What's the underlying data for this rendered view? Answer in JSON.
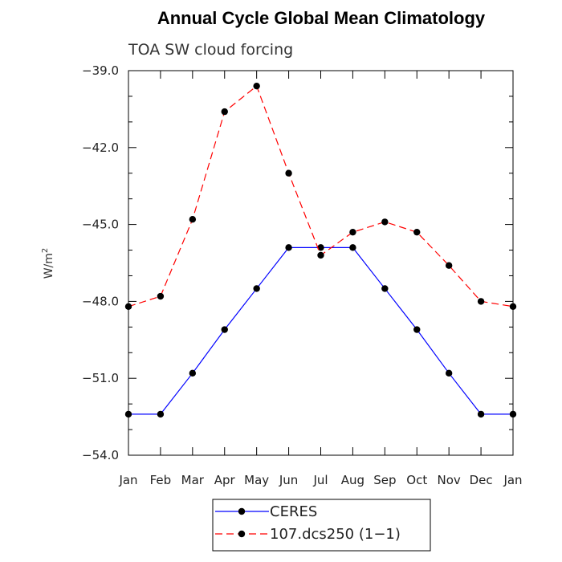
{
  "chart_data": {
    "type": "line",
    "title": "Annual Cycle Global Mean Climatology",
    "subtitle": "TOA SW cloud forcing",
    "ylabel_base": "W/m",
    "ylabel_exp": "2",
    "xlabel": "",
    "categories": [
      "Jan",
      "Feb",
      "Mar",
      "Apr",
      "May",
      "Jun",
      "Jul",
      "Aug",
      "Sep",
      "Oct",
      "Nov",
      "Dec",
      "Jan"
    ],
    "ylim": [
      -54.0,
      -39.0
    ],
    "yticks": [
      -39.0,
      -42.0,
      -45.0,
      -48.0,
      -51.0,
      -54.0
    ],
    "ytick_labels": [
      "−39.0",
      "−42.0",
      "−45.0",
      "−48.0",
      "−51.0",
      "−54.0"
    ],
    "grid": false,
    "legend_position": "bottom-center",
    "series": [
      {
        "name": "CERES",
        "color": "#0000ff",
        "style": "solid",
        "values": [
          -52.4,
          -52.4,
          -50.8,
          -49.1,
          -47.5,
          -45.9,
          -45.9,
          -45.9,
          -47.5,
          -49.1,
          -50.8,
          -52.4,
          -52.4
        ]
      },
      {
        "name": "107.dcs250 (1−1)",
        "color": "#ff0000",
        "style": "dashed",
        "values": [
          -48.2,
          -47.8,
          -44.8,
          -40.6,
          -39.6,
          -43.0,
          -46.2,
          -45.3,
          -44.9,
          -45.3,
          -46.6,
          -48.0,
          -48.2
        ]
      }
    ]
  }
}
